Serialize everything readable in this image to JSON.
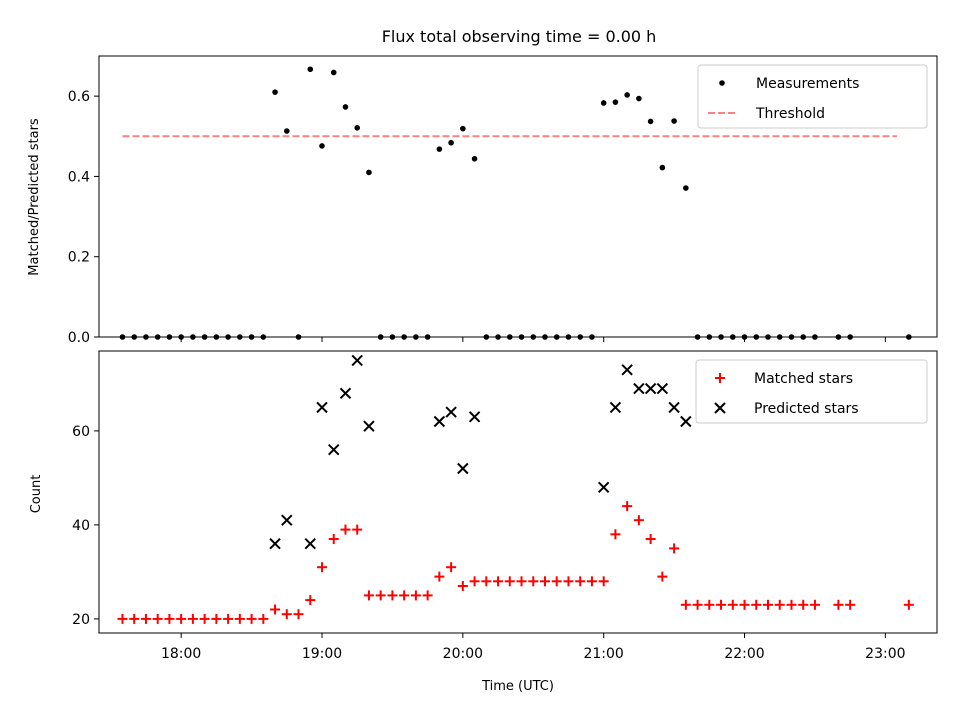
{
  "title": "Flux total observing time = 0.00 h",
  "chart_data": [
    {
      "type": "scatter",
      "ylabel": "Matched/Predicted stars",
      "ylim": [
        0,
        0.7
      ],
      "yticks": [
        0.0,
        0.2,
        0.4,
        0.6
      ],
      "ytick_labels": [
        "0.0",
        "0.2",
        "0.4",
        "0.6"
      ],
      "xlim": [
        "17:25",
        "23:22"
      ],
      "legend_position": "top-right",
      "legend": [
        "Measurements",
        "Threshold"
      ],
      "series": [
        {
          "name": "Measurements",
          "marker": "dot",
          "color": "#000000",
          "x": [
            "17:35",
            "17:40",
            "17:45",
            "17:50",
            "17:55",
            "18:00",
            "18:05",
            "18:10",
            "18:15",
            "18:20",
            "18:25",
            "18:30",
            "18:35",
            "18:40",
            "18:45",
            "18:50",
            "18:55",
            "19:00",
            "19:05",
            "19:10",
            "19:15",
            "19:20",
            "19:25",
            "19:30",
            "19:35",
            "19:40",
            "19:45",
            "19:50",
            "19:55",
            "20:00",
            "20:05",
            "20:10",
            "20:15",
            "20:20",
            "20:25",
            "20:30",
            "20:35",
            "20:40",
            "20:45",
            "20:50",
            "20:55",
            "21:00",
            "21:05",
            "21:10",
            "21:15",
            "21:20",
            "21:25",
            "21:30",
            "21:35",
            "21:40",
            "21:45",
            "21:50",
            "21:55",
            "22:00",
            "22:05",
            "22:10",
            "22:15",
            "22:20",
            "22:25",
            "22:30",
            "22:40",
            "22:45",
            "23:10"
          ],
          "y": [
            0,
            0,
            0,
            0,
            0,
            0,
            0,
            0,
            0,
            0,
            0,
            0,
            0,
            0.61,
            0.513,
            0,
            0.667,
            0.476,
            0.659,
            0.573,
            0.521,
            0.41,
            0,
            0,
            0,
            0,
            0,
            0.468,
            0.484,
            0.519,
            0.444,
            0,
            0,
            0,
            0,
            0,
            0,
            0,
            0,
            0,
            0,
            0.583,
            0.585,
            0.603,
            0.594,
            0.537,
            0.422,
            0.538,
            0.371,
            0,
            0,
            0,
            0,
            0,
            0,
            0,
            0,
            0,
            0,
            0,
            0,
            0,
            0
          ]
        },
        {
          "name": "Threshold",
          "style": "dashed",
          "color": "#ff8080",
          "x": [
            "17:35",
            "23:05"
          ],
          "y": [
            0.5,
            0.5
          ]
        }
      ]
    },
    {
      "type": "scatter",
      "xlabel": "Time (UTC)",
      "ylabel": "Count",
      "ylim": [
        17,
        77
      ],
      "yticks": [
        20,
        40,
        60
      ],
      "ytick_labels": [
        "20",
        "40",
        "60"
      ],
      "xticks": [
        "18:00",
        "19:00",
        "20:00",
        "21:00",
        "22:00",
        "23:00"
      ],
      "xlim": [
        "17:25",
        "23:22"
      ],
      "legend_position": "top-right",
      "legend": [
        "Matched stars",
        "Predicted stars"
      ],
      "series": [
        {
          "name": "Matched stars",
          "marker": "plus",
          "color": "#ff0000",
          "x": [
            "17:35",
            "17:40",
            "17:45",
            "17:50",
            "17:55",
            "18:00",
            "18:05",
            "18:10",
            "18:15",
            "18:20",
            "18:25",
            "18:30",
            "18:35",
            "18:40",
            "18:45",
            "18:50",
            "18:55",
            "19:00",
            "19:05",
            "19:10",
            "19:15",
            "19:20",
            "19:25",
            "19:30",
            "19:35",
            "19:40",
            "19:45",
            "19:50",
            "19:55",
            "20:00",
            "20:05",
            "20:10",
            "20:15",
            "20:20",
            "20:25",
            "20:30",
            "20:35",
            "20:40",
            "20:45",
            "20:50",
            "20:55",
            "21:00",
            "21:05",
            "21:10",
            "21:15",
            "21:20",
            "21:25",
            "21:30",
            "21:35",
            "21:40",
            "21:45",
            "21:50",
            "21:55",
            "22:00",
            "22:05",
            "22:10",
            "22:15",
            "22:20",
            "22:25",
            "22:30",
            "22:40",
            "22:45",
            "23:10"
          ],
          "y": [
            20,
            20,
            20,
            20,
            20,
            20,
            20,
            20,
            20,
            20,
            20,
            20,
            20,
            22,
            21,
            21,
            24,
            31,
            37,
            39,
            39,
            25,
            25,
            25,
            25,
            25,
            25,
            29,
            31,
            27,
            28,
            28,
            28,
            28,
            28,
            28,
            28,
            28,
            28,
            28,
            28,
            28,
            38,
            44,
            41,
            37,
            29,
            35,
            23,
            23,
            23,
            23,
            23,
            23,
            23,
            23,
            23,
            23,
            23,
            23,
            23,
            23,
            23
          ]
        },
        {
          "name": "Predicted stars",
          "marker": "x",
          "color": "#000000",
          "x": [
            "18:40",
            "18:45",
            "18:55",
            "19:00",
            "19:05",
            "19:10",
            "19:15",
            "19:20",
            "19:50",
            "19:55",
            "20:00",
            "20:05",
            "21:00",
            "21:05",
            "21:10",
            "21:15",
            "21:20",
            "21:25",
            "21:30",
            "21:35"
          ],
          "y": [
            36,
            41,
            36,
            65,
            56,
            68,
            75,
            61,
            62,
            64,
            52,
            63,
            48,
            65,
            73,
            69,
            69,
            69,
            65,
            62
          ]
        }
      ]
    }
  ]
}
